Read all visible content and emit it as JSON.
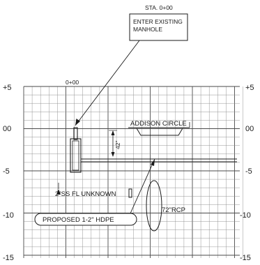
{
  "station_header": "STA. 0+00",
  "callout_text": [
    "ENTER EXISTING",
    "MANHOLE"
  ],
  "station_label": "0+00",
  "y_axis": {
    "left_labels": [
      "+5",
      "00",
      "-5",
      "-10",
      "-15"
    ],
    "right_labels": [
      "+5",
      "00",
      "-5",
      "-10",
      "-15"
    ]
  },
  "street_label": "ADDISON CIRCLE",
  "depth_label": "42\"",
  "sewer_label": "2\"SS FL UNKNOWN",
  "proposed_label": "PROPOSED 1-2\" HDPE",
  "rcp_label": "72\"RCP",
  "colors": {
    "ink": "#1a1a1a",
    "grid_minor": "#8a8a8a",
    "grid_major": "#4a4a4a",
    "background": "#ffffff"
  }
}
